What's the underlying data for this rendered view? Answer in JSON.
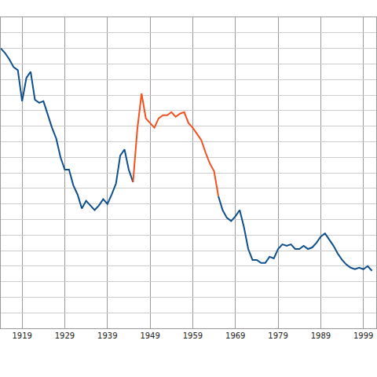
{
  "chart_data": {
    "type": "line",
    "x": [
      1914,
      1915,
      1916,
      1917,
      1918,
      1919,
      1920,
      1921,
      1922,
      1923,
      1924,
      1925,
      1926,
      1927,
      1928,
      1929,
      1930,
      1931,
      1932,
      1933,
      1934,
      1935,
      1936,
      1937,
      1938,
      1939,
      1940,
      1941,
      1942,
      1943,
      1944,
      1945,
      1946,
      1947,
      1948,
      1949,
      1950,
      1951,
      1952,
      1953,
      1954,
      1955,
      1956,
      1957,
      1958,
      1959,
      1960,
      1961,
      1962,
      1963,
      1964,
      1965,
      1966,
      1967,
      1968,
      1969,
      1970,
      1971,
      1972,
      1973,
      1974,
      1975,
      1976,
      1977,
      1978,
      1979,
      1980,
      1981,
      1982,
      1983,
      1984,
      1985,
      1986,
      1987,
      1988,
      1989,
      1990,
      1991,
      1992,
      1993,
      1994,
      1995,
      1996,
      1997,
      1998,
      1999,
      2000,
      2001
    ],
    "series": [
      {
        "color": "#0e4f8c",
        "values": [
          18.0,
          17.7,
          17.3,
          16.8,
          16.6,
          14.6,
          16.1,
          16.5,
          14.7,
          14.5,
          14.6,
          13.7,
          12.9,
          12.2,
          11.0,
          10.2,
          10.2,
          9.2,
          8.6,
          7.7,
          8.2,
          7.9,
          7.6,
          7.9,
          8.3,
          8.0,
          8.6,
          9.3,
          11.1,
          11.5,
          10.2,
          9.4,
          null,
          null,
          null,
          null,
          null,
          null,
          null,
          null,
          null,
          null,
          null,
          null,
          null,
          null,
          null,
          null,
          null,
          null,
          null,
          8.5,
          7.6,
          7.1,
          6.9,
          7.2,
          7.6,
          6.5,
          5.1,
          4.4,
          4.4,
          4.2,
          4.2,
          4.6,
          4.5,
          5.1,
          5.4,
          5.3,
          5.4,
          5.1,
          5.1,
          5.3,
          5.1,
          5.2,
          5.5,
          5.9,
          6.1,
          5.7,
          5.3,
          4.8,
          4.4,
          4.1,
          3.9,
          3.8,
          3.9,
          3.8,
          4.0,
          3.7
        ]
      },
      {
        "color": "#f4511e",
        "values": [
          null,
          null,
          null,
          null,
          null,
          null,
          null,
          null,
          null,
          null,
          null,
          null,
          null,
          null,
          null,
          null,
          null,
          null,
          null,
          null,
          null,
          null,
          null,
          null,
          null,
          null,
          null,
          null,
          null,
          null,
          null,
          9.4,
          12.8,
          15.1,
          13.5,
          13.2,
          12.9,
          13.5,
          13.7,
          13.7,
          13.9,
          13.6,
          13.8,
          13.9,
          13.2,
          12.9,
          12.5,
          12.1,
          11.3,
          10.6,
          10.1,
          8.5,
          null,
          null,
          null,
          null,
          null,
          null,
          null,
          null,
          null,
          null,
          null,
          null,
          null,
          null,
          null,
          null,
          null,
          null,
          null,
          null,
          null,
          null,
          null,
          null,
          null,
          null,
          null,
          null,
          null,
          null,
          null,
          null,
          null,
          null,
          null,
          null
        ]
      }
    ],
    "xlim": [
      1914,
      2002
    ],
    "xticks": [
      1919,
      1929,
      1939,
      1949,
      1959,
      1969,
      1979,
      1989,
      1999
    ],
    "ylim": [
      0,
      20
    ],
    "yticks": [
      0,
      1,
      2,
      3,
      4,
      5,
      6,
      7,
      8,
      9,
      10,
      11,
      12,
      13,
      14,
      15,
      16,
      17,
      18,
      19,
      20
    ],
    "grid": true,
    "tick_labels": "x"
  }
}
